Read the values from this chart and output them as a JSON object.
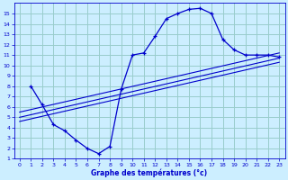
{
  "bg_color": "#cceeff",
  "grid_color": "#99cccc",
  "line_color": "#0000cc",
  "xlabel": "Graphe des températures (°c)",
  "xlim": [
    -0.5,
    23.5
  ],
  "ylim": [
    1,
    16
  ],
  "yticks": [
    1,
    2,
    3,
    4,
    5,
    6,
    7,
    8,
    9,
    10,
    11,
    12,
    13,
    14,
    15
  ],
  "xticks": [
    0,
    1,
    2,
    3,
    4,
    5,
    6,
    7,
    8,
    9,
    10,
    11,
    12,
    13,
    14,
    15,
    16,
    17,
    18,
    19,
    20,
    21,
    22,
    23
  ],
  "curve1_x": [
    1,
    2,
    3,
    4,
    5,
    6,
    7,
    8,
    9,
    10,
    11,
    12,
    13,
    14,
    15,
    16,
    17,
    18,
    19,
    20,
    21,
    22,
    23
  ],
  "curve1_y": [
    8.0,
    6.2,
    4.3,
    3.7,
    2.8,
    2.0,
    1.5,
    2.2,
    7.7,
    11.0,
    11.2,
    12.8,
    14.5,
    15.0,
    15.4,
    15.5,
    15.0,
    12.5,
    11.5,
    11.0,
    11.0,
    11.0,
    10.8
  ],
  "line1_x": [
    0,
    23
  ],
  "line1_y": [
    5.5,
    11.2
  ],
  "line2_x": [
    0,
    23
  ],
  "line2_y": [
    5.0,
    10.7
  ],
  "line3_x": [
    0,
    23
  ],
  "line3_y": [
    4.6,
    10.3
  ]
}
